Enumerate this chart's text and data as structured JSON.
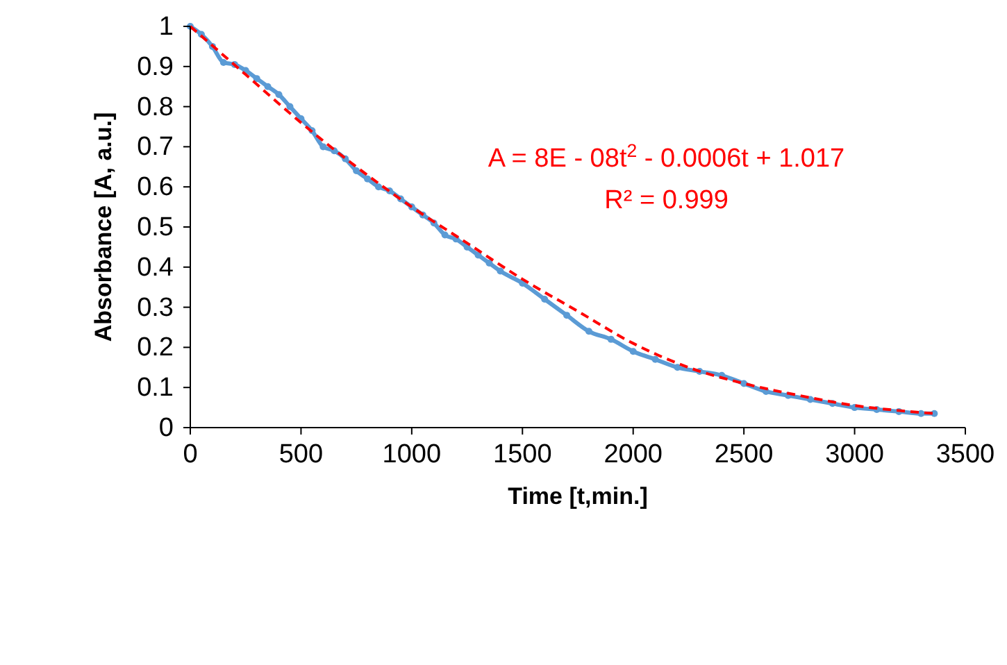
{
  "chart_data": {
    "type": "line",
    "xlabel": "Time [t,min.]",
    "ylabel": "Absorbance [A, a.u.]",
    "xlim": [
      0,
      3500
    ],
    "xticks": [
      0,
      500,
      1000,
      1500,
      2000,
      2500,
      3000,
      3500
    ],
    "ylim": [
      0,
      1
    ],
    "yticks": [
      0,
      0.1,
      0.2,
      0.3,
      0.4,
      0.5,
      0.6,
      0.7,
      0.8,
      0.9,
      1
    ],
    "grid": false,
    "annotations": [
      "A = 8E - 08t$^{2}$ - 0.0006t + 1.017",
      "R² = 0.999"
    ],
    "series": [
      {
        "color": "#5b9bd5",
        "marker": "circle",
        "line_style": "solid",
        "x": [
          0,
          50,
          100,
          150,
          200,
          250,
          300,
          350,
          400,
          450,
          500,
          550,
          600,
          650,
          700,
          750,
          800,
          850,
          900,
          950,
          1000,
          1050,
          1100,
          1150,
          1200,
          1250,
          1300,
          1350,
          1400,
          1500,
          1600,
          1700,
          1800,
          1900,
          2000,
          2100,
          2200,
          2300,
          2400,
          2500,
          2600,
          2700,
          2800,
          2900,
          3000,
          3100,
          3200,
          3300,
          3360
        ],
        "values": [
          1.0,
          0.98,
          0.95,
          0.91,
          0.905,
          0.89,
          0.87,
          0.85,
          0.83,
          0.8,
          0.77,
          0.74,
          0.7,
          0.69,
          0.67,
          0.64,
          0.62,
          0.6,
          0.59,
          0.57,
          0.55,
          0.53,
          0.51,
          0.48,
          0.47,
          0.45,
          0.43,
          0.41,
          0.39,
          0.36,
          0.32,
          0.28,
          0.24,
          0.22,
          0.19,
          0.17,
          0.15,
          0.14,
          0.13,
          0.11,
          0.09,
          0.08,
          0.07,
          0.06,
          0.05,
          0.045,
          0.04,
          0.035,
          0.035
        ]
      },
      {
        "type": "line",
        "color": "#ff0000",
        "marker": "none",
        "line_style": "dashed",
        "x": [
          0,
          250,
          500,
          750,
          1000,
          1250,
          1500,
          1750,
          2000,
          2250,
          2500,
          2750,
          3000,
          3250,
          3360
        ],
        "values": [
          1.0,
          0.88,
          0.76,
          0.65,
          0.55,
          0.46,
          0.37,
          0.29,
          0.21,
          0.15,
          0.11,
          0.08,
          0.055,
          0.04,
          0.035
        ]
      }
    ]
  }
}
